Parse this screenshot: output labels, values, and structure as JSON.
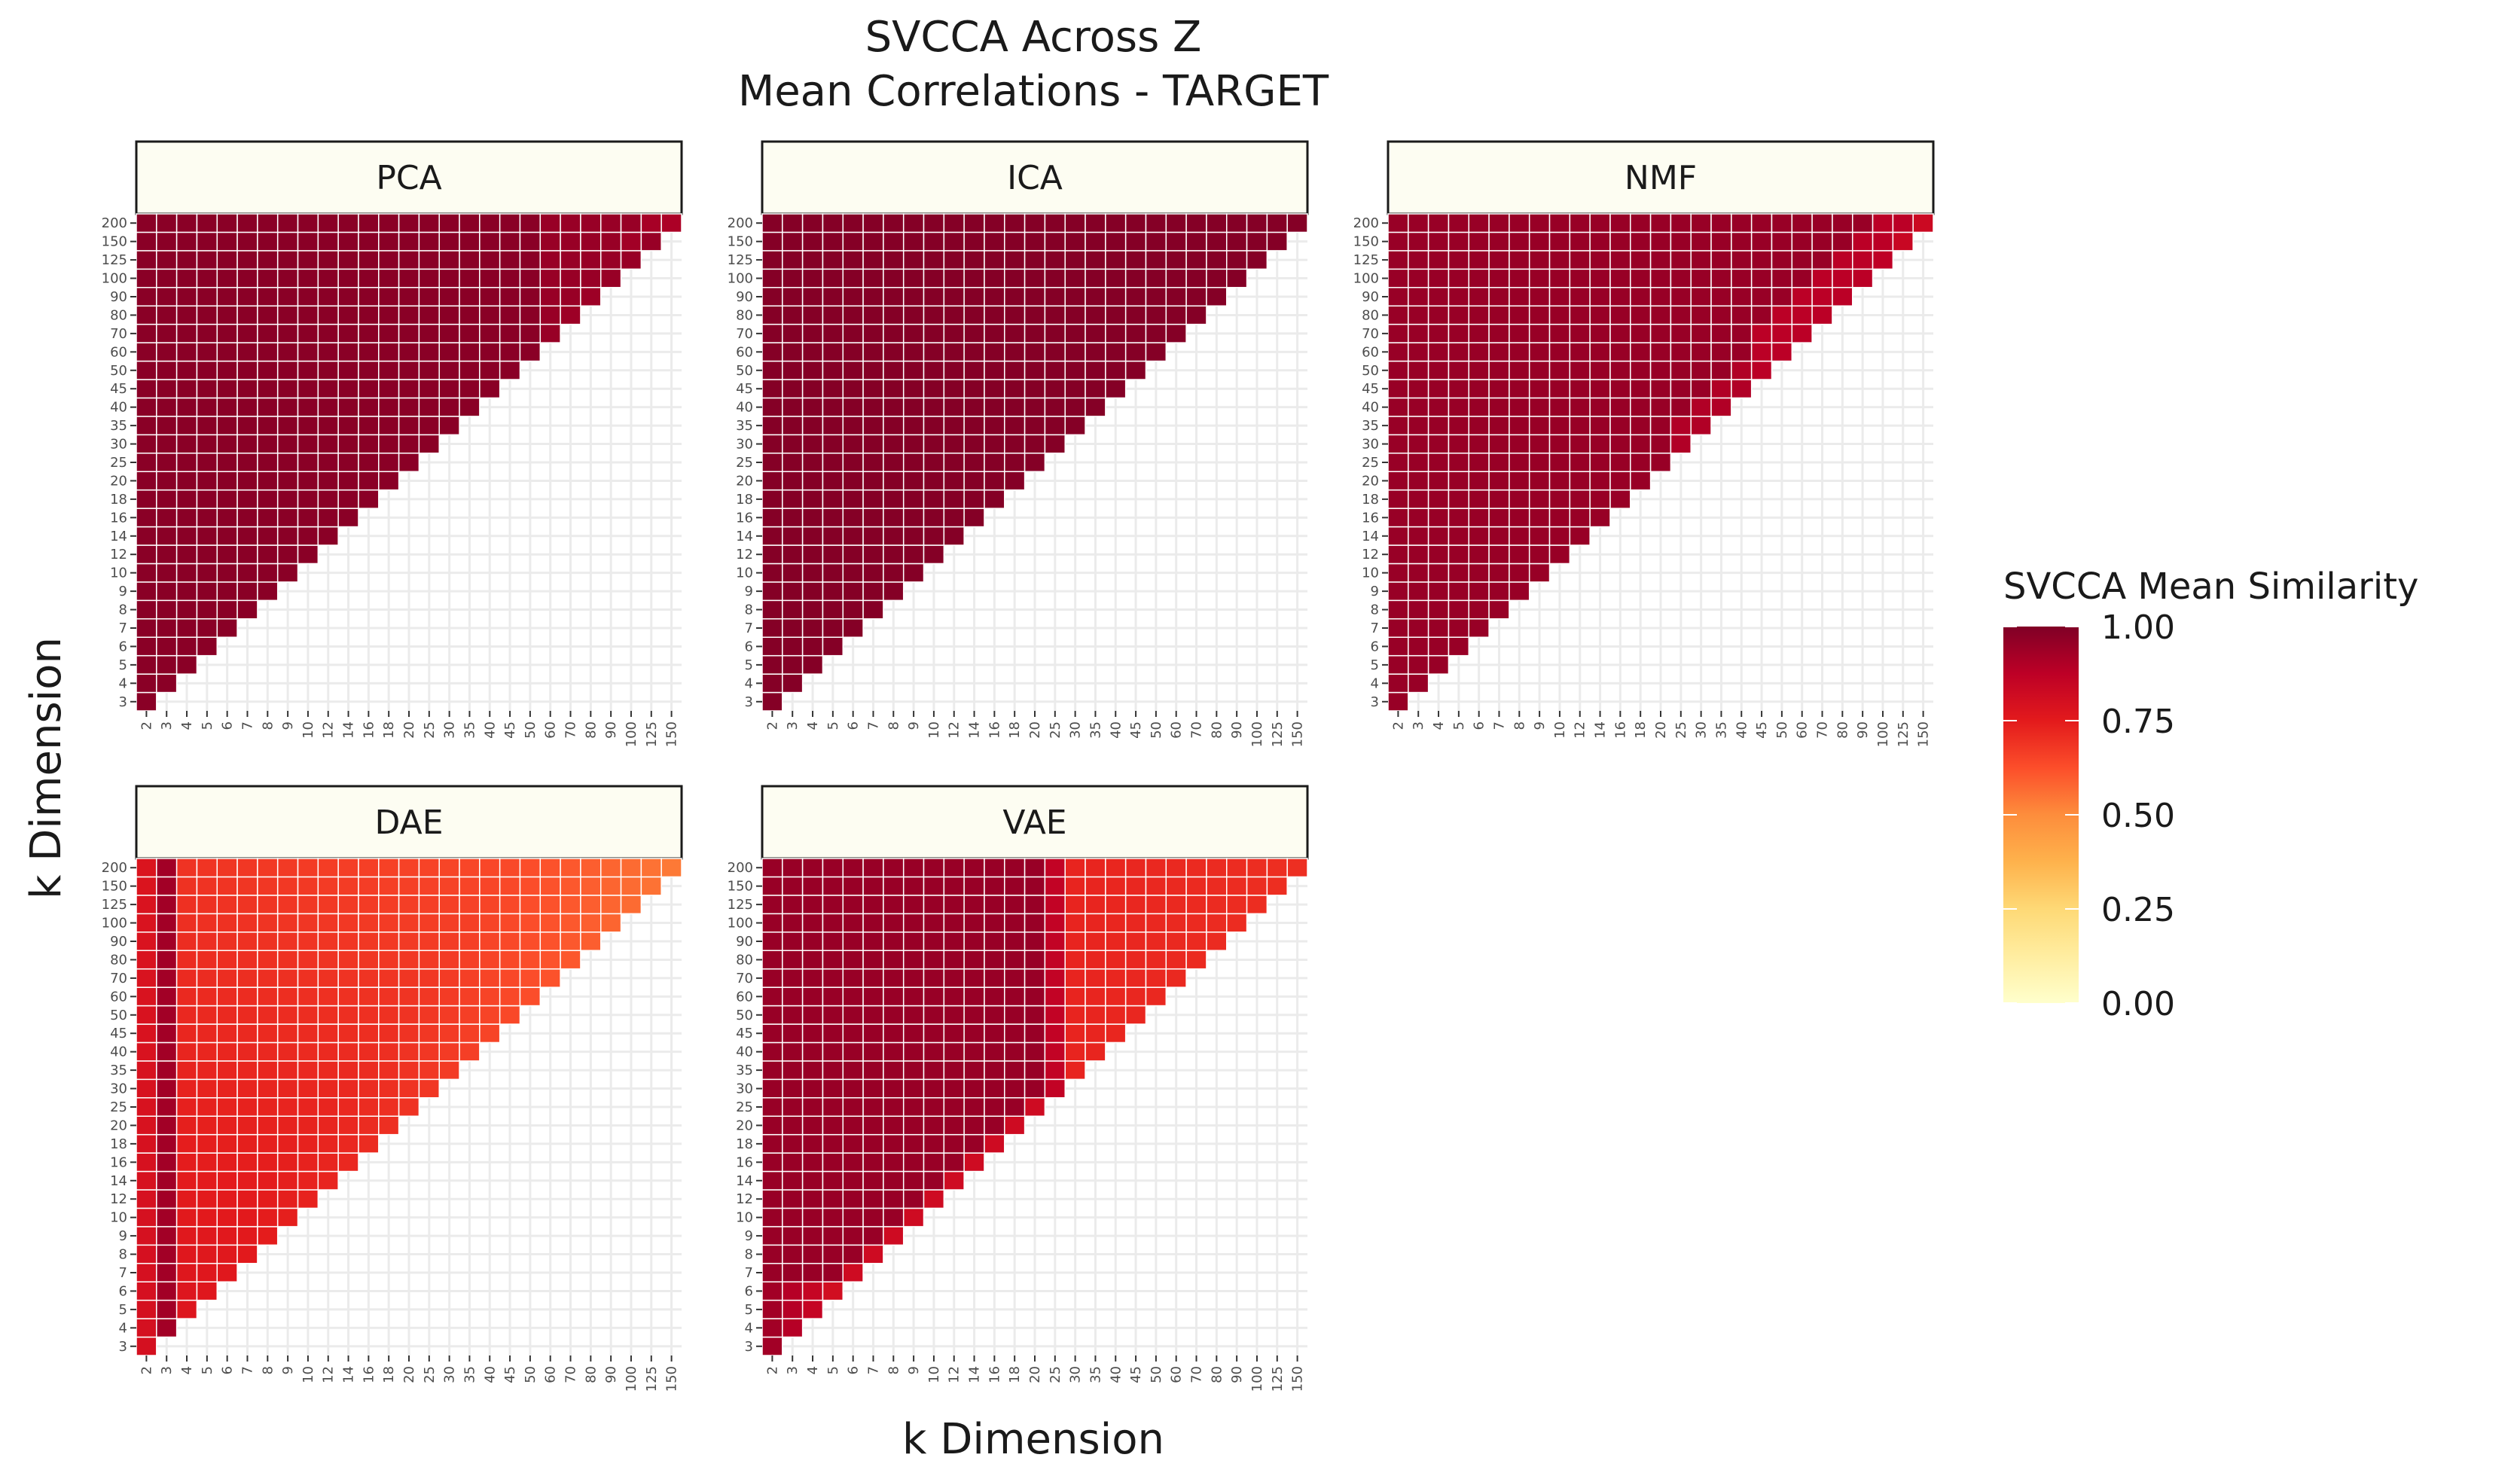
{
  "chart_data": {
    "type": "heatmap",
    "title": "SVCCA Across Z",
    "subtitle": "Mean Correlations - TARGET",
    "xlabel": "k Dimension",
    "ylabel": "k Dimension",
    "x_categories": [
      "2",
      "3",
      "4",
      "5",
      "6",
      "7",
      "8",
      "9",
      "10",
      "12",
      "14",
      "16",
      "18",
      "20",
      "25",
      "30",
      "35",
      "40",
      "45",
      "50",
      "60",
      "70",
      "80",
      "90",
      "100",
      "125",
      "150"
    ],
    "y_categories": [
      "3",
      "4",
      "5",
      "6",
      "7",
      "8",
      "9",
      "10",
      "12",
      "14",
      "16",
      "18",
      "20",
      "25",
      "30",
      "35",
      "40",
      "45",
      "50",
      "60",
      "70",
      "80",
      "90",
      "100",
      "125",
      "150",
      "200"
    ],
    "cell_rule": "value shown only where x dimension < y dimension (lower triangle)",
    "panels": [
      {
        "name": "PCA",
        "values_summary": "all cells about 0.98, upper-right corner slightly lower",
        "edge_values": {
          "125-200": 0.92,
          "150-200": 0.91,
          "100-150": 0.93,
          "80-90": 0.94,
          "70-80": 0.94
        }
      },
      {
        "name": "ICA",
        "values_summary": "all cells about 0.99"
      },
      {
        "name": "NMF",
        "values_summary": "about 0.96 in most cells, dropping to about 0.85 toward the diagonal at high k",
        "edge_values": {
          "150-200": 0.83,
          "125-150": 0.84,
          "100-125": 0.87,
          "90-100": 0.88
        }
      },
      {
        "name": "DAE",
        "values_summary": "column 3 about 0.92; other cells 0.78 at low k decreasing to 0.55 at high k"
      },
      {
        "name": "VAE",
        "values_summary": "about 0.95 for k below 25, dropping to about 0.75 for x dimension 30 and above"
      }
    ],
    "legend": {
      "title": "SVCCA Mean Similarity",
      "position": "right",
      "ticks": [
        "1.00",
        "0.75",
        "0.50",
        "0.25",
        "0.00"
      ],
      "range": [
        0,
        1
      ],
      "colors": [
        "#ffffcc",
        "#ffeda0",
        "#fed976",
        "#feb24c",
        "#fd8d3c",
        "#fc4e2a",
        "#e31a1c",
        "#bd0026",
        "#800026"
      ]
    },
    "grid": true
  },
  "colors": {
    "grid": "#ebebeb",
    "na_fill": "#ffffff",
    "cell_border": "#ffffff",
    "strip_fill": "#fdfdf2"
  }
}
